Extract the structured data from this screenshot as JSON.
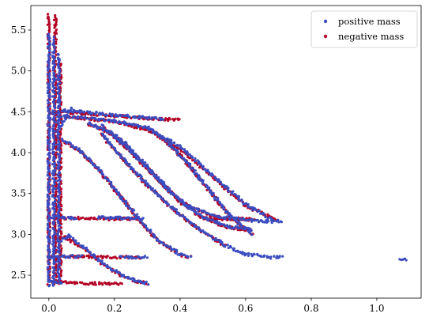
{
  "chart_data": {
    "type": "scatter",
    "title": "",
    "xlabel": "",
    "ylabel": "",
    "xlim": [
      -0.055,
      1.135
    ],
    "ylim": [
      2.22,
      5.8
    ],
    "xticks": [
      0.0,
      0.2,
      0.4,
      0.6,
      0.8,
      1.0
    ],
    "xtick_labels": [
      "0.0",
      "0.2",
      "0.4",
      "0.6",
      "0.8",
      "1.0"
    ],
    "yticks": [
      2.5,
      3.0,
      3.5,
      4.0,
      4.5,
      5.0,
      5.5
    ],
    "ytick_labels": [
      "2.5",
      "3.0",
      "3.5",
      "4.0",
      "4.5",
      "5.0",
      "5.5"
    ],
    "grid": false,
    "legend": {
      "position": "top-right",
      "entries": [
        {
          "name": "positive mass",
          "color": "#3b4cc0"
        },
        {
          "name": "negative mass",
          "color": "#b40426"
        }
      ]
    },
    "series": [
      {
        "name": "negative mass",
        "color": "#b40426",
        "segments": [
          {
            "x": [
              0.0,
              0.0
            ],
            "y": [
              2.4,
              5.68
            ]
          },
          {
            "x": [
              0.02,
              0.02
            ],
            "y": [
              2.4,
              5.68
            ]
          },
          {
            "x": [
              0.035,
              0.035
            ],
            "y": [
              2.4,
              5.1
            ]
          },
          {
            "x": [
              0.0,
              0.04,
              0.1,
              0.2,
              0.3,
              0.4
            ],
            "y": [
              4.47,
              4.5,
              4.48,
              4.45,
              4.42,
              4.4
            ]
          },
          {
            "x": [
              0.05,
              0.1,
              0.2,
              0.3,
              0.4,
              0.5,
              0.6,
              0.7
            ],
            "y": [
              4.44,
              4.42,
              4.38,
              4.28,
              4.05,
              3.7,
              3.35,
              3.17
            ]
          },
          {
            "x": [
              0.12,
              0.18,
              0.24,
              0.3,
              0.36,
              0.42,
              0.52,
              0.62
            ],
            "y": [
              4.35,
              4.25,
              4.05,
              3.8,
              3.55,
              3.35,
              3.2,
              3.17
            ]
          },
          {
            "x": [
              0.16,
              0.22,
              0.28,
              0.34,
              0.4,
              0.47,
              0.55,
              0.62
            ],
            "y": [
              4.32,
              4.15,
              3.9,
              3.65,
              3.4,
              3.2,
              3.08,
              3.05
            ]
          },
          {
            "x": [
              0.16,
              0.22,
              0.3,
              0.38,
              0.46,
              0.54
            ],
            "y": [
              4.22,
              3.95,
              3.6,
              3.3,
              3.05,
              2.85
            ]
          },
          {
            "x": [
              0.3,
              0.34,
              0.38,
              0.42,
              0.46,
              0.5,
              0.54,
              0.58,
              0.62
            ],
            "y": [
              4.3,
              4.2,
              4.05,
              3.88,
              3.68,
              3.48,
              3.28,
              3.12,
              3.0
            ]
          },
          {
            "x": [
              0.04,
              0.1,
              0.16,
              0.22,
              0.28,
              0.34,
              0.4,
              0.43
            ],
            "y": [
              4.15,
              4.0,
              3.75,
              3.45,
              3.15,
              2.9,
              2.75,
              2.72
            ]
          },
          {
            "x": [
              0.04,
              0.1,
              0.16,
              0.22,
              0.26,
              0.3
            ],
            "y": [
              2.98,
              2.85,
              2.65,
              2.5,
              2.43,
              2.4
            ]
          },
          {
            "x": [
              0.0,
              0.06,
              0.12,
              0.18,
              0.24,
              0.27
            ],
            "y": [
              3.2,
              3.2,
              3.2,
              3.19,
              3.19,
              3.19
            ]
          },
          {
            "x": [
              0.47,
              0.53,
              0.59,
              0.63
            ],
            "y": [
              3.2,
              3.19,
              3.19,
              3.18
            ]
          },
          {
            "x": [
              0.0,
              0.08,
              0.16,
              0.24,
              0.28
            ],
            "y": [
              2.73,
              2.73,
              2.72,
              2.72,
              2.72
            ]
          },
          {
            "x": [
              0.0,
              0.06,
              0.12,
              0.18,
              0.22
            ],
            "y": [
              2.42,
              2.41,
              2.4,
              2.4,
              2.4
            ]
          }
        ]
      },
      {
        "name": "positive mass",
        "color": "#3b4cc0",
        "segments": [
          {
            "x": [
              0.0,
              0.0
            ],
            "y": [
              2.38,
              5.45
            ]
          },
          {
            "x": [
              0.015,
              0.015
            ],
            "y": [
              2.38,
              5.4
            ]
          },
          {
            "x": [
              0.03,
              0.03
            ],
            "y": [
              2.45,
              5.2
            ]
          },
          {
            "x": [
              0.04,
              0.1,
              0.2,
              0.3,
              0.35
            ],
            "y": [
              4.52,
              4.5,
              4.46,
              4.43,
              4.41
            ]
          },
          {
            "x": [
              0.03,
              0.07
            ],
            "y": [
              4.3,
              4.55
            ]
          },
          {
            "x": [
              0.04,
              0.1,
              0.2,
              0.3,
              0.4,
              0.5,
              0.6,
              0.68,
              0.71
            ],
            "y": [
              4.45,
              4.43,
              4.39,
              4.3,
              4.07,
              3.72,
              3.37,
              3.18,
              3.15
            ]
          },
          {
            "x": [
              0.12,
              0.18,
              0.24,
              0.3,
              0.36,
              0.42,
              0.52,
              0.62,
              0.68
            ],
            "y": [
              4.36,
              4.26,
              4.06,
              3.81,
              3.56,
              3.36,
              3.21,
              3.17,
              3.15
            ]
          },
          {
            "x": [
              0.16,
              0.22,
              0.28,
              0.34,
              0.4,
              0.47,
              0.55,
              0.62
            ],
            "y": [
              4.33,
              4.16,
              3.91,
              3.66,
              3.41,
              3.21,
              3.09,
              3.06
            ]
          },
          {
            "x": [
              0.16,
              0.22,
              0.3,
              0.38,
              0.46,
              0.54,
              0.6,
              0.68,
              0.71
            ],
            "y": [
              4.23,
              3.96,
              3.61,
              3.31,
              3.06,
              2.86,
              2.76,
              2.72,
              2.72
            ]
          },
          {
            "x": [
              0.3,
              0.34,
              0.38,
              0.42,
              0.46,
              0.5,
              0.54,
              0.58,
              0.62
            ],
            "y": [
              4.31,
              4.21,
              4.06,
              3.89,
              3.69,
              3.49,
              3.29,
              3.13,
              3.01
            ]
          },
          {
            "x": [
              0.04,
              0.1,
              0.16,
              0.22,
              0.28,
              0.34,
              0.4,
              0.43
            ],
            "y": [
              4.16,
              4.01,
              3.76,
              3.46,
              3.16,
              2.91,
              2.76,
              2.72
            ]
          },
          {
            "x": [
              0.03,
              0.06,
              0.1,
              0.16,
              0.22,
              0.26,
              0.3
            ],
            "y": [
              2.9,
              2.99,
              2.86,
              2.66,
              2.51,
              2.44,
              2.4
            ]
          },
          {
            "x": [
              0.0,
              0.04,
              0.08
            ],
            "y": [
              3.21,
              3.21,
              3.2
            ]
          },
          {
            "x": [
              0.15,
              0.2,
              0.25,
              0.29
            ],
            "y": [
              3.21,
              3.2,
              3.2,
              3.2
            ]
          },
          {
            "x": [
              0.0,
              0.05,
              0.1
            ],
            "y": [
              2.73,
              2.73,
              2.73
            ]
          },
          {
            "x": [
              0.22,
              0.26,
              0.3
            ],
            "y": [
              2.72,
              2.72,
              2.72
            ]
          },
          {
            "x": [
              0.0,
              0.04
            ],
            "y": [
              2.42,
              2.41
            ]
          },
          {
            "x": [
              1.07,
              1.09
            ],
            "y": [
              2.7,
              2.69
            ]
          }
        ]
      }
    ]
  }
}
